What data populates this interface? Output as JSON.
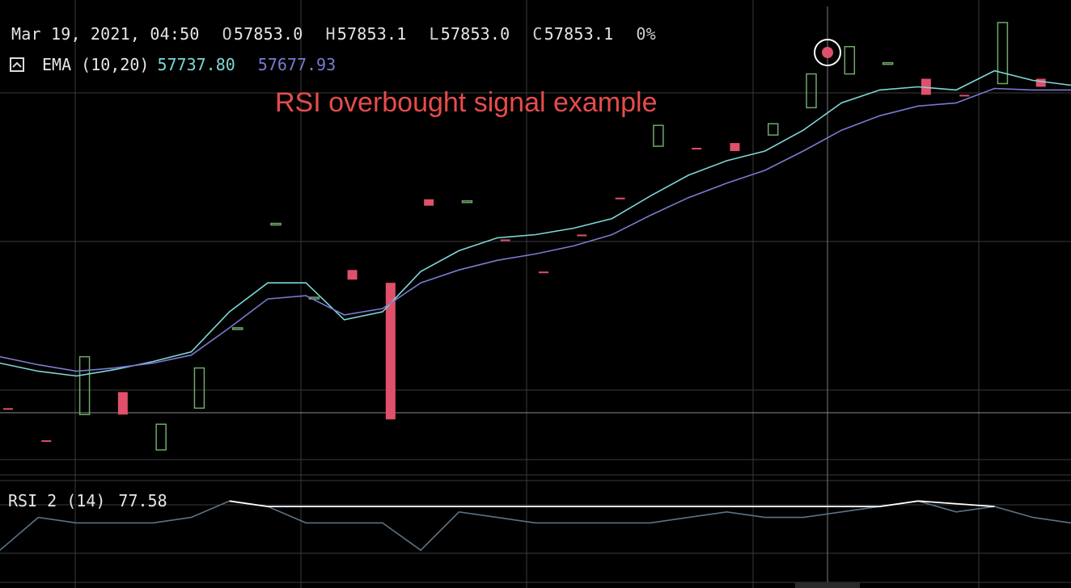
{
  "header": {
    "datetime": "Mar 19, 2021, 04:50",
    "open_key": "O",
    "open_val": "57853.0",
    "high_key": "H",
    "high_val": "57853.1",
    "low_key": "L",
    "low_val": "57853.0",
    "close_key": "C",
    "close_val": "57853.1",
    "change": "0%"
  },
  "ema": {
    "label": "EMA (10,20)",
    "value_fast": "57737.80",
    "value_slow": "57677.93",
    "color_fast": "#7fd6d6",
    "color_slow": "#7a7ad0"
  },
  "annotation": "RSI overbought signal example",
  "rsi": {
    "label": "RSI 2 (14)",
    "value": "77.58",
    "line_color": "#5c7386",
    "overbought_color": "#ffffff"
  },
  "colors": {
    "up": "#6fa86a",
    "down": "#e0506a",
    "grid": "#3a3a3a",
    "crosshair": "#7a7a7a",
    "marker": "#e0506a"
  },
  "icons": {
    "collapse": "chevron-up-icon",
    "signal": "circle-marker-icon"
  },
  "chart_data": {
    "type": "line",
    "title": "",
    "xlabel": "",
    "ylabel": "",
    "candles": [
      {
        "o": 57710,
        "c": 57710,
        "d": "down"
      },
      {
        "o": 57690,
        "c": 57690,
        "d": "down"
      },
      {
        "o": 57706,
        "c": 57742,
        "d": "up"
      },
      {
        "o": 57706,
        "c": 57720,
        "d": "down"
      },
      {
        "o": 57684,
        "c": 57700,
        "d": "up"
      },
      {
        "o": 57710,
        "c": 57735,
        "d": "up"
      },
      {
        "o": 57760,
        "c": 57760,
        "d": "up"
      },
      {
        "o": 57825,
        "c": 57825,
        "d": "up"
      },
      {
        "o": 57779,
        "c": 57779,
        "d": "up"
      },
      {
        "o": 57796,
        "c": 57790,
        "d": "down"
      },
      {
        "o": 57788,
        "c": 57703,
        "d": "down"
      },
      {
        "o": 57836,
        "c": 57840,
        "d": "down"
      },
      {
        "o": 57839,
        "c": 57839,
        "d": "up"
      },
      {
        "o": 57815,
        "c": 57815,
        "d": "down"
      },
      {
        "o": 57795,
        "c": 57795,
        "d": "down"
      },
      {
        "o": 57818,
        "c": 57818,
        "d": "down"
      },
      {
        "o": 57841,
        "c": 57841,
        "d": "down"
      },
      {
        "o": 57886,
        "c": 57873,
        "d": "up"
      },
      {
        "o": 57872,
        "c": 57872,
        "d": "down"
      },
      {
        "o": 57875,
        "c": 57870,
        "d": "down"
      },
      {
        "o": 57880,
        "c": 57887,
        "d": "up"
      },
      {
        "o": 57897,
        "c": 57918,
        "d": "up"
      },
      {
        "o": 57918,
        "c": 57935,
        "d": "up"
      },
      {
        "o": 57925,
        "c": 57925,
        "d": "up"
      },
      {
        "o": 57915,
        "c": 57905,
        "d": "down"
      },
      {
        "o": 57905,
        "c": 57905,
        "d": "down"
      },
      {
        "o": 57912,
        "c": 57950,
        "d": "up"
      },
      {
        "o": 57915,
        "c": 57910,
        "d": "down"
      },
      {
        "o": 57909,
        "c": 57909,
        "d": "down"
      }
    ],
    "series": [
      {
        "name": "EMA (10,20)",
        "values": [
          57738,
          57733,
          57730,
          57734,
          57739,
          57745,
          57770,
          57788,
          57788,
          57765,
          57770,
          57795,
          57808,
          57816,
          57818,
          57822,
          57828,
          57842,
          57855,
          57864,
          57870,
          57883,
          57900,
          57908,
          57910,
          57908,
          57920,
          57914,
          57911
        ]
      },
      {
        "name": "",
        "values": [
          57742,
          57737,
          57733,
          57735,
          57738,
          57743,
          57760,
          57778,
          57780,
          57768,
          57772,
          57788,
          57796,
          57802,
          57806,
          57811,
          57818,
          57830,
          57841,
          57850,
          57858,
          57870,
          57883,
          57892,
          57898,
          57900,
          57909,
          57908,
          57908
        ]
      }
    ],
    "rsi": [
      50,
      56,
      55,
      55,
      55,
      56,
      59,
      58,
      55,
      55,
      55,
      50,
      57,
      56,
      55,
      55,
      55,
      55,
      56,
      57,
      56,
      56,
      57,
      58,
      59,
      57,
      58,
      56,
      55
    ]
  }
}
